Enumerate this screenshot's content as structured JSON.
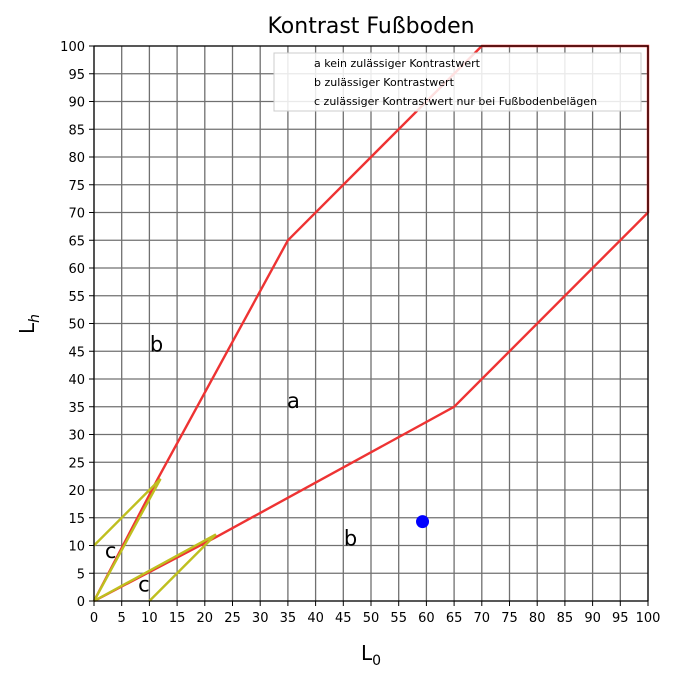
{
  "chart_data": {
    "type": "line",
    "title": "Kontrast Fußboden",
    "xlabel": "L",
    "xlabel_sub": "0",
    "ylabel": "L",
    "ylabel_sub": "h",
    "xlim": [
      0,
      100
    ],
    "ylim": [
      0,
      100
    ],
    "xticks": [
      0,
      5,
      10,
      15,
      20,
      25,
      30,
      35,
      40,
      45,
      50,
      55,
      60,
      65,
      70,
      75,
      80,
      85,
      90,
      95,
      100
    ],
    "yticks": [
      0,
      5,
      10,
      15,
      20,
      25,
      30,
      35,
      40,
      45,
      50,
      55,
      60,
      65,
      70,
      75,
      80,
      85,
      90,
      95,
      100
    ],
    "grid": true,
    "legend_position": "top-right",
    "legend": [
      "a kein zulässiger Kontrastwert",
      "b zulässiger Kontrastwert",
      "c zulässiger Kontrastwert nur bei Fußbodenbelägen"
    ],
    "colors": {
      "boundary": "#ee3333",
      "floor_zone": "#bfbf1f",
      "point": "#0000ff",
      "grid": "#707070"
    },
    "series": [
      {
        "kind": "boundary",
        "points": [
          [
            0,
            0
          ],
          [
            11.5,
            22
          ],
          [
            35,
            65
          ],
          [
            70,
            100
          ],
          [
            100,
            100
          ],
          [
            100,
            70
          ],
          [
            65,
            35
          ],
          [
            22,
            11.5
          ],
          [
            0,
            0
          ]
        ]
      },
      {
        "kind": "floor_zone",
        "points": [
          [
            0,
            0
          ],
          [
            12,
            22
          ],
          [
            0,
            10
          ]
        ]
      },
      {
        "kind": "floor_zone",
        "points": [
          [
            0,
            0
          ],
          [
            22,
            12
          ],
          [
            10,
            0
          ]
        ]
      }
    ],
    "points": [
      {
        "x": 59.3,
        "y": 14.3
      }
    ],
    "annotations": [
      {
        "text": "a",
        "x": 36,
        "y": 36
      },
      {
        "text": "b",
        "x": 11.3,
        "y": 46.2
      },
      {
        "text": "b",
        "x": 46.3,
        "y": 11.3
      },
      {
        "text": "c",
        "x": 3,
        "y": 9
      },
      {
        "text": "c",
        "x": 9,
        "y": 3
      }
    ]
  }
}
